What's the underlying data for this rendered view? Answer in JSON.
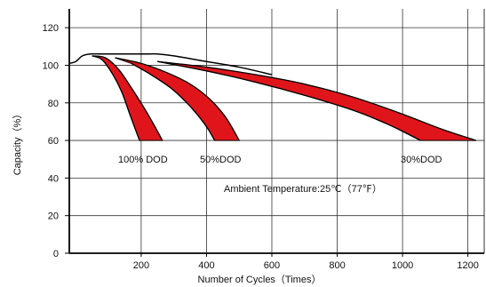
{
  "chart_data": {
    "type": "area",
    "title": "",
    "xlabel": "Number of Cycles（Times）",
    "ylabel": "Capacity（%）",
    "xlim": [
      -20,
      1250
    ],
    "ylim": [
      0,
      130
    ],
    "xticks": [
      200,
      400,
      600,
      800,
      1000,
      1200
    ],
    "yticks": [
      0,
      20,
      40,
      60,
      80,
      100,
      120
    ],
    "grid": true,
    "fill_color": "#e0151b",
    "series": [
      {
        "label": "100% DOD",
        "upper": [
          [
            50,
            105
          ],
          [
            90,
            104
          ],
          [
            130,
            98
          ],
          [
            170,
            88
          ],
          [
            210,
            77
          ],
          [
            240,
            68
          ],
          [
            265,
            60
          ]
        ],
        "lower": [
          [
            50,
            105
          ],
          [
            80,
            103
          ],
          [
            110,
            96
          ],
          [
            140,
            86
          ],
          [
            165,
            74
          ],
          [
            182,
            66
          ],
          [
            195,
            60
          ]
        ]
      },
      {
        "label": "50%DOD",
        "upper": [
          [
            120,
            104
          ],
          [
            200,
            101
          ],
          [
            280,
            96
          ],
          [
            350,
            90
          ],
          [
            410,
            82
          ],
          [
            460,
            72
          ],
          [
            500,
            60
          ]
        ],
        "lower": [
          [
            170,
            101
          ],
          [
            230,
            95
          ],
          [
            290,
            88
          ],
          [
            340,
            80
          ],
          [
            380,
            72
          ],
          [
            405,
            66
          ],
          [
            425,
            60
          ]
        ]
      },
      {
        "label": "30%DOD",
        "upper": [
          [
            250,
            102
          ],
          [
            400,
            99
          ],
          [
            550,
            95
          ],
          [
            700,
            90
          ],
          [
            850,
            83
          ],
          [
            1000,
            74
          ],
          [
            1120,
            66
          ],
          [
            1225,
            60
          ]
        ],
        "lower": [
          [
            250,
            102
          ],
          [
            400,
            97
          ],
          [
            550,
            91
          ],
          [
            700,
            84
          ],
          [
            850,
            76
          ],
          [
            950,
            69
          ],
          [
            1010,
            64
          ],
          [
            1055,
            60
          ]
        ]
      }
    ],
    "main_curve": [
      [
        -20,
        101
      ],
      [
        0,
        102
      ],
      [
        20,
        105
      ],
      [
        45,
        106
      ],
      [
        80,
        106
      ],
      [
        150,
        106
      ],
      [
        220,
        106
      ],
      [
        250,
        106
      ],
      [
        300,
        105
      ],
      [
        400,
        102
      ],
      [
        500,
        99
      ],
      [
        600,
        95
      ]
    ],
    "annotations": {
      "label_100": "100% DOD",
      "label_50": "50%DOD",
      "label_30": "30%DOD",
      "ambient": "Ambient Temperature:25℃（77℉）"
    }
  }
}
